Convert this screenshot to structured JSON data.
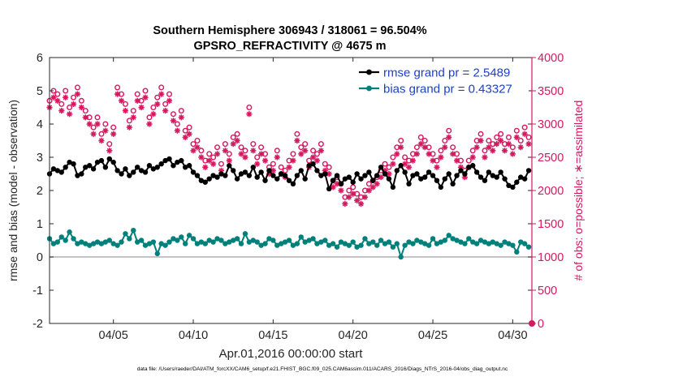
{
  "chart_data": {
    "type": "line",
    "title_line1": "Southern Hemisphere 306943 / 318061 = 96.504%",
    "title_line2": "GPSRO_REFRACTIVITY @ 4675 m",
    "xlabel": "Apr.01,2016 00:00:00 start",
    "ylabel_left": "rmse and bias (model - observation)",
    "ylabel_right": "# of obs: o=possible; ∗=assimilated",
    "footer": "data file: /Users/raeder/DAI/ATM_forcXX/CAM6_setup/f.e21.FHIST_BGC.f09_025.CAM6assim.011/ACARS_2016/Diags_NTrS_2016-04/obs_diag_output.nc",
    "xlim": [
      1,
      31.2
    ],
    "ylim_left": [
      -2,
      6
    ],
    "ylim_right": [
      0,
      4000
    ],
    "yticks_left": [
      -2,
      -1,
      0,
      1,
      2,
      3,
      4,
      5,
      6
    ],
    "yticks_right": [
      0,
      500,
      1000,
      1500,
      2000,
      2500,
      3000,
      3500,
      4000
    ],
    "xticks": [
      {
        "value": 5,
        "label": "04/05"
      },
      {
        "value": 10,
        "label": "04/10"
      },
      {
        "value": 15,
        "label": "04/15"
      },
      {
        "value": 20,
        "label": "04/20"
      },
      {
        "value": 25,
        "label": "04/25"
      },
      {
        "value": 30,
        "label": "04/30"
      }
    ],
    "legend_position": "top-right",
    "colors": {
      "rmse": "#000000",
      "bias": "#00807a",
      "counts": "#d6185e",
      "legend_text": "#1a3fd1",
      "zero_line": "#b0b0b0"
    },
    "series": [
      {
        "name": "rmse grand pr = 2.5489",
        "axis": "left",
        "marker": "dot",
        "x": [
          1.0,
          1.25,
          1.5,
          1.75,
          2.0,
          2.25,
          2.5,
          2.75,
          3.0,
          3.25,
          3.5,
          3.75,
          4.0,
          4.25,
          4.5,
          4.75,
          5.0,
          5.25,
          5.5,
          5.75,
          6.0,
          6.25,
          6.5,
          6.75,
          7.0,
          7.25,
          7.5,
          7.75,
          8.0,
          8.25,
          8.5,
          8.75,
          9.0,
          9.25,
          9.5,
          9.75,
          10.0,
          10.25,
          10.5,
          10.75,
          11.0,
          11.25,
          11.5,
          11.75,
          12.0,
          12.25,
          12.5,
          12.75,
          13.0,
          13.25,
          13.5,
          13.75,
          14.0,
          14.25,
          14.5,
          14.75,
          15.0,
          15.25,
          15.5,
          15.75,
          16.0,
          16.25,
          16.5,
          16.75,
          17.0,
          17.25,
          17.5,
          17.75,
          18.0,
          18.25,
          18.5,
          18.75,
          19.0,
          19.25,
          19.5,
          19.75,
          20.0,
          20.25,
          20.5,
          20.75,
          21.0,
          21.25,
          21.5,
          21.75,
          22.0,
          22.25,
          22.5,
          22.75,
          23.0,
          23.25,
          23.5,
          23.75,
          24.0,
          24.25,
          24.5,
          24.75,
          25.0,
          25.25,
          25.5,
          25.75,
          26.0,
          26.25,
          26.5,
          26.75,
          27.0,
          27.25,
          27.5,
          27.75,
          28.0,
          28.25,
          28.5,
          28.75,
          29.0,
          29.25,
          29.5,
          29.75,
          30.0,
          30.25,
          30.5,
          30.75,
          31.0
        ],
        "y": [
          2.5,
          2.65,
          2.6,
          2.55,
          2.7,
          2.85,
          2.8,
          2.45,
          2.5,
          2.7,
          2.75,
          2.65,
          2.85,
          2.9,
          2.7,
          2.95,
          2.85,
          2.6,
          2.5,
          2.65,
          2.45,
          2.55,
          2.7,
          2.6,
          2.55,
          2.75,
          2.65,
          2.7,
          2.8,
          2.9,
          2.95,
          2.75,
          2.85,
          2.9,
          2.7,
          2.75,
          2.55,
          2.45,
          2.3,
          2.25,
          2.35,
          2.45,
          2.4,
          2.5,
          2.45,
          2.75,
          2.6,
          2.35,
          2.5,
          2.55,
          2.45,
          2.7,
          2.4,
          2.55,
          2.3,
          2.6,
          2.45,
          2.35,
          2.5,
          2.45,
          2.3,
          2.2,
          2.45,
          2.6,
          2.35,
          2.75,
          2.8,
          2.6,
          2.45,
          2.5,
          2.05,
          2.3,
          2.45,
          2.2,
          2.35,
          2.4,
          2.25,
          2.5,
          2.35,
          2.45,
          2.55,
          2.3,
          2.45,
          2.7,
          2.5,
          2.35,
          2.1,
          2.6,
          2.75,
          2.55,
          2.2,
          2.45,
          2.5,
          2.35,
          2.4,
          2.55,
          2.45,
          2.3,
          2.1,
          2.35,
          2.5,
          2.2,
          2.45,
          2.6,
          2.5,
          2.7,
          2.75,
          2.55,
          2.4,
          2.3,
          2.55,
          2.45,
          2.4,
          2.55,
          2.35,
          2.15,
          2.1,
          2.25,
          2.4,
          2.35,
          2.6
        ]
      },
      {
        "name": "bias grand pr = 0.43327",
        "axis": "left",
        "marker": "dot",
        "x": [
          1.0,
          1.25,
          1.5,
          1.75,
          2.0,
          2.25,
          2.5,
          2.75,
          3.0,
          3.25,
          3.5,
          3.75,
          4.0,
          4.25,
          4.5,
          4.75,
          5.0,
          5.25,
          5.5,
          5.75,
          6.0,
          6.25,
          6.5,
          6.75,
          7.0,
          7.25,
          7.5,
          7.75,
          8.0,
          8.25,
          8.5,
          8.75,
          9.0,
          9.25,
          9.5,
          9.75,
          10.0,
          10.25,
          10.5,
          10.75,
          11.0,
          11.25,
          11.5,
          11.75,
          12.0,
          12.25,
          12.5,
          12.75,
          13.0,
          13.25,
          13.5,
          13.75,
          14.0,
          14.25,
          14.5,
          14.75,
          15.0,
          15.25,
          15.5,
          15.75,
          16.0,
          16.25,
          16.5,
          16.75,
          17.0,
          17.25,
          17.5,
          17.75,
          18.0,
          18.25,
          18.5,
          18.75,
          19.0,
          19.25,
          19.5,
          19.75,
          20.0,
          20.25,
          20.5,
          20.75,
          21.0,
          21.25,
          21.5,
          21.75,
          22.0,
          22.25,
          22.5,
          22.75,
          23.0,
          23.25,
          23.5,
          23.75,
          24.0,
          24.25,
          24.5,
          24.75,
          25.0,
          25.25,
          25.5,
          25.75,
          26.0,
          26.25,
          26.5,
          26.75,
          27.0,
          27.25,
          27.5,
          27.75,
          28.0,
          28.25,
          28.5,
          28.75,
          29.0,
          29.25,
          29.5,
          29.75,
          30.0,
          30.25,
          30.5,
          30.75,
          31.0
        ],
        "y": [
          0.55,
          0.4,
          0.45,
          0.6,
          0.5,
          0.75,
          0.55,
          0.4,
          0.45,
          0.4,
          0.35,
          0.4,
          0.45,
          0.4,
          0.45,
          0.5,
          0.4,
          0.35,
          0.45,
          0.7,
          0.55,
          0.8,
          0.45,
          0.5,
          0.35,
          0.4,
          0.45,
          0.1,
          0.4,
          0.35,
          0.45,
          0.55,
          0.5,
          0.6,
          0.4,
          0.65,
          0.55,
          0.4,
          0.45,
          0.4,
          0.5,
          0.45,
          0.55,
          0.5,
          0.4,
          0.45,
          0.5,
          0.55,
          0.4,
          0.7,
          0.45,
          0.5,
          0.45,
          0.35,
          0.4,
          0.55,
          0.5,
          0.35,
          0.4,
          0.45,
          0.5,
          0.35,
          0.4,
          0.6,
          0.45,
          0.5,
          0.55,
          0.4,
          0.45,
          0.5,
          0.35,
          0.4,
          0.3,
          0.45,
          0.4,
          0.35,
          0.45,
          0.3,
          0.35,
          0.55,
          0.4,
          0.45,
          0.35,
          0.5,
          0.4,
          0.45,
          0.3,
          0.4,
          0.0,
          0.35,
          0.45,
          0.4,
          0.5,
          0.45,
          0.4,
          0.35,
          0.55,
          0.4,
          0.45,
          0.5,
          0.65,
          0.55,
          0.5,
          0.45,
          0.4,
          0.55,
          0.45,
          0.4,
          0.5,
          0.45,
          0.4,
          0.45,
          0.4,
          0.35,
          0.45,
          0.4,
          0.35,
          0.15,
          0.45,
          0.4,
          0.3
        ]
      },
      {
        "name": "possible",
        "axis": "right",
        "marker": "circle",
        "x": [
          1.0,
          1.25,
          1.5,
          1.75,
          2.0,
          2.25,
          2.5,
          2.75,
          3.0,
          3.25,
          3.5,
          3.75,
          4.0,
          4.25,
          4.5,
          4.75,
          5.0,
          5.25,
          5.5,
          5.75,
          6.0,
          6.25,
          6.5,
          6.75,
          7.0,
          7.25,
          7.5,
          7.75,
          8.0,
          8.25,
          8.5,
          8.75,
          9.0,
          9.25,
          9.5,
          9.75,
          10.0,
          10.25,
          10.5,
          10.75,
          11.0,
          11.25,
          11.5,
          11.75,
          12.0,
          12.25,
          12.5,
          12.75,
          13.0,
          13.25,
          13.5,
          13.75,
          14.0,
          14.25,
          14.5,
          14.75,
          15.0,
          15.25,
          15.5,
          15.75,
          16.0,
          16.25,
          16.5,
          16.75,
          17.0,
          17.25,
          17.5,
          17.75,
          18.0,
          18.25,
          18.5,
          18.75,
          19.0,
          19.25,
          19.5,
          19.75,
          20.0,
          20.25,
          20.5,
          20.75,
          21.0,
          21.25,
          21.5,
          21.75,
          22.0,
          22.25,
          22.5,
          22.75,
          23.0,
          23.25,
          23.5,
          23.75,
          24.0,
          24.25,
          24.5,
          24.75,
          25.0,
          25.25,
          25.5,
          25.75,
          26.0,
          26.25,
          26.5,
          26.75,
          27.0,
          27.25,
          27.5,
          27.75,
          28.0,
          28.25,
          28.5,
          28.75,
          29.0,
          29.25,
          29.5,
          29.75,
          30.0,
          30.25,
          30.5,
          30.75,
          31.0
        ],
        "y": [
          3350,
          3500,
          3450,
          3300,
          3500,
          3250,
          3400,
          3550,
          3350,
          3200,
          3100,
          2950,
          3100,
          2850,
          3000,
          2700,
          2950,
          3550,
          3450,
          3300,
          3050,
          3200,
          3450,
          3350,
          3500,
          3100,
          3250,
          3400,
          3550,
          3300,
          3450,
          3150,
          3000,
          3200,
          2900,
          2950,
          2700,
          2750,
          2600,
          2450,
          2550,
          2500,
          2650,
          2400,
          2700,
          2550,
          2800,
          2850,
          2650,
          2600,
          3250,
          2700,
          2500,
          2650,
          2550,
          2350,
          2400,
          2600,
          2350,
          2300,
          2450,
          2550,
          2850,
          2650,
          2700,
          2450,
          2600,
          2550,
          2700,
          2400,
          2350,
          2150,
          2200,
          2100,
          1900,
          2000,
          2050,
          1950,
          1900,
          2000,
          2100,
          2150,
          2200,
          2300,
          2400,
          2350,
          2500,
          2650,
          2750,
          2500,
          2450,
          2550,
          2650,
          2800,
          2750,
          2650,
          2550,
          2450,
          2600,
          2750,
          2900,
          2650,
          2550,
          2450,
          2300,
          2450,
          2600,
          2750,
          2850,
          2600,
          2750,
          2700,
          2800,
          2850,
          2700,
          2800,
          2650,
          2900,
          2750,
          2950,
          2800
        ]
      },
      {
        "name": "assimilated",
        "axis": "right",
        "marker": "star",
        "x": [
          1.0,
          1.25,
          1.5,
          1.75,
          2.0,
          2.25,
          2.5,
          2.75,
          3.0,
          3.25,
          3.5,
          3.75,
          4.0,
          4.25,
          4.5,
          4.75,
          5.0,
          5.25,
          5.5,
          5.75,
          6.0,
          6.25,
          6.5,
          6.75,
          7.0,
          7.25,
          7.5,
          7.75,
          8.0,
          8.25,
          8.5,
          8.75,
          9.0,
          9.25,
          9.5,
          9.75,
          10.0,
          10.25,
          10.5,
          10.75,
          11.0,
          11.25,
          11.5,
          11.75,
          12.0,
          12.25,
          12.5,
          12.75,
          13.0,
          13.25,
          13.5,
          13.75,
          14.0,
          14.25,
          14.5,
          14.75,
          15.0,
          15.25,
          15.5,
          15.75,
          16.0,
          16.25,
          16.5,
          16.75,
          17.0,
          17.25,
          17.5,
          17.75,
          18.0,
          18.25,
          18.5,
          18.75,
          19.0,
          19.25,
          19.5,
          19.75,
          20.0,
          20.25,
          20.5,
          20.75,
          21.0,
          21.25,
          21.5,
          21.75,
          22.0,
          22.25,
          22.5,
          22.75,
          23.0,
          23.25,
          23.5,
          23.75,
          24.0,
          24.25,
          24.5,
          24.75,
          25.0,
          25.25,
          25.5,
          25.75,
          26.0,
          26.25,
          26.5,
          26.75,
          27.0,
          27.25,
          27.5,
          27.75,
          28.0,
          28.25,
          28.5,
          28.75,
          29.0,
          29.25,
          29.5,
          29.75,
          30.0,
          30.25,
          30.5,
          30.75,
          31.0
        ],
        "y": [
          3250,
          3400,
          3350,
          3200,
          3400,
          3150,
          3300,
          3450,
          3250,
          3100,
          3000,
          2850,
          3000,
          2750,
          2900,
          2600,
          2850,
          3450,
          3350,
          3200,
          2950,
          3100,
          3350,
          3250,
          3400,
          3000,
          3150,
          3300,
          3450,
          3200,
          3350,
          3050,
          2900,
          3100,
          2800,
          2850,
          2600,
          2650,
          2500,
          2350,
          2450,
          2400,
          2550,
          2300,
          2600,
          2450,
          2700,
          2750,
          2550,
          2500,
          3150,
          2600,
          2400,
          2550,
          2450,
          2250,
          2300,
          2500,
          2250,
          2200,
          2350,
          2450,
          2750,
          2550,
          2600,
          2350,
          2500,
          2450,
          2600,
          2300,
          2250,
          2050,
          2100,
          2000,
          1800,
          1900,
          1950,
          1850,
          1800,
          1900,
          2000,
          2050,
          2100,
          2200,
          2300,
          2250,
          2400,
          2550,
          2650,
          2400,
          2350,
          2450,
          2550,
          2700,
          2650,
          2550,
          2450,
          2350,
          2500,
          2650,
          2800,
          2550,
          2450,
          2350,
          2200,
          2350,
          2500,
          2650,
          2750,
          2500,
          2650,
          2600,
          2700,
          2750,
          2600,
          2700,
          2550,
          2800,
          2650,
          2850,
          2700
        ]
      }
    ]
  }
}
